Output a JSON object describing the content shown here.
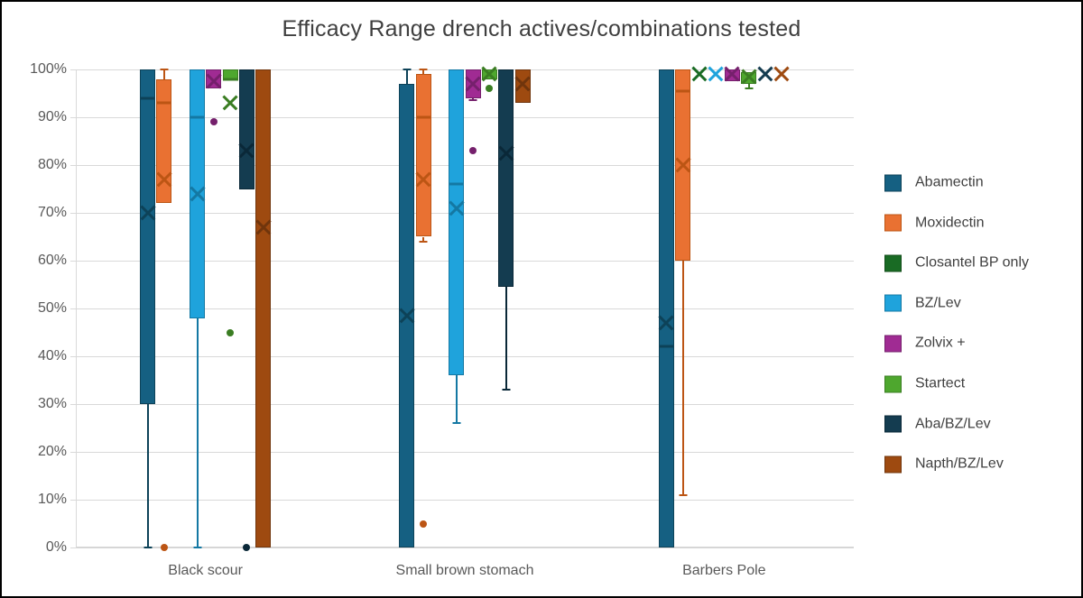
{
  "chart_data": {
    "type": "boxplot",
    "title": "Efficacy Range drench actives/combinations tested",
    "categories": [
      "Black scour",
      "Small brown stomach",
      "Barbers Pole"
    ],
    "y_axis": {
      "min": 0,
      "max": 100,
      "step": 10,
      "suffix": "%",
      "tick_labels": [
        "0%",
        "10%",
        "20%",
        "30%",
        "40%",
        "50%",
        "60%",
        "70%",
        "80%",
        "90%",
        "100%"
      ]
    },
    "grid": true,
    "legend_position": "right",
    "colors": {
      "grid": "#d9d9d9",
      "title_text": "#3f3f3f",
      "axis_text": "#595959",
      "legend_text": "#404040"
    },
    "series": [
      {
        "name": "Abamectin",
        "fill": "#156082",
        "dark": "#0d4258",
        "boxes": [
          {
            "q1": 30,
            "q3": 100,
            "median": 94,
            "mean": 70,
            "lo": 0,
            "hi": null,
            "outliers": []
          },
          {
            "q1": 0,
            "q3": 97,
            "median": null,
            "mean": 48.5,
            "lo": null,
            "hi": 100,
            "outliers": []
          },
          {
            "q1": 0,
            "q3": 100,
            "median": 42,
            "mean": 47,
            "lo": null,
            "hi": null,
            "outliers": []
          }
        ]
      },
      {
        "name": "Moxidectin",
        "fill": "#e97132",
        "dark": "#bc5514",
        "boxes": [
          {
            "q1": 72,
            "q3": 98,
            "median": 93,
            "mean": 77,
            "lo": null,
            "hi": 100,
            "outliers": [
              0
            ]
          },
          {
            "q1": 65,
            "q3": 99,
            "median": 90,
            "mean": 77,
            "lo": 64,
            "hi": 100,
            "outliers": [
              5
            ]
          },
          {
            "q1": 60,
            "q3": 100,
            "median": 95.5,
            "mean": 80,
            "lo": 11,
            "hi": null,
            "outliers": []
          }
        ]
      },
      {
        "name": "Closantel BP only",
        "fill": "#196b24",
        "dark": "#124d1a",
        "boxes": [
          null,
          null,
          {
            "q1": null,
            "q3": null,
            "median": null,
            "mean": 99,
            "lo": null,
            "hi": null,
            "outliers": []
          }
        ]
      },
      {
        "name": "BZ/Lev",
        "fill": "#1fa3dc",
        "dark": "#1478a3",
        "boxes": [
          {
            "q1": 48,
            "q3": 100,
            "median": 90,
            "mean": 74,
            "lo": 0,
            "hi": null,
            "outliers": []
          },
          {
            "q1": 36,
            "q3": 100,
            "median": 76,
            "mean": 71,
            "lo": 26,
            "hi": null,
            "outliers": []
          },
          {
            "q1": null,
            "q3": null,
            "median": null,
            "mean": 99,
            "lo": null,
            "hi": null,
            "outliers": []
          }
        ]
      },
      {
        "name": "Zolvix +",
        "fill": "#a02b93",
        "dark": "#75206c",
        "boxes": [
          {
            "q1": 96,
            "q3": 100,
            "median": null,
            "mean": 97.5,
            "lo": null,
            "hi": null,
            "outliers": [
              89
            ]
          },
          {
            "q1": 94,
            "q3": 100,
            "median": null,
            "mean": 97,
            "lo": 93.5,
            "hi": null,
            "outliers": [
              83
            ]
          },
          {
            "q1": 97.5,
            "q3": 100,
            "median": null,
            "mean": 99,
            "lo": null,
            "hi": null,
            "outliers": []
          }
        ]
      },
      {
        "name": "Startect",
        "fill": "#4ea72e",
        "dark": "#3a7d22",
        "boxes": [
          {
            "q1": 98,
            "q3": 100,
            "median": 98,
            "mean": 93,
            "lo": null,
            "hi": null,
            "outliers": [
              45
            ]
          },
          {
            "q1": 98,
            "q3": 100,
            "median": null,
            "mean": 99,
            "lo": null,
            "hi": null,
            "outliers": [
              96
            ]
          },
          {
            "q1": 97,
            "q3": 99.5,
            "median": null,
            "mean": 98.5,
            "lo": 96,
            "hi": null,
            "outliers": []
          }
        ]
      },
      {
        "name": "Aba/BZ/Lev",
        "fill": "#143c50",
        "dark": "#0a2838",
        "boxes": [
          {
            "q1": 75,
            "q3": 100,
            "median": null,
            "mean": 83,
            "lo": null,
            "hi": null,
            "outliers": [
              0
            ]
          },
          {
            "q1": 54.5,
            "q3": 100,
            "median": null,
            "mean": 82.5,
            "lo": 33,
            "hi": null,
            "outliers": []
          },
          {
            "q1": null,
            "q3": null,
            "median": null,
            "mean": 99,
            "lo": null,
            "hi": null,
            "outliers": []
          }
        ]
      },
      {
        "name": "Napth/BZ/Lev",
        "fill": "#9e4a10",
        "dark": "#70350c",
        "boxes": [
          {
            "q1": 0,
            "q3": 100,
            "median": null,
            "mean": 67,
            "lo": null,
            "hi": null,
            "outliers": []
          },
          {
            "q1": 93,
            "q3": 100,
            "median": null,
            "mean": 97,
            "lo": null,
            "hi": null,
            "outliers": []
          },
          {
            "q1": null,
            "q3": null,
            "median": null,
            "mean": 99,
            "lo": null,
            "hi": null,
            "outliers": []
          }
        ]
      }
    ]
  }
}
